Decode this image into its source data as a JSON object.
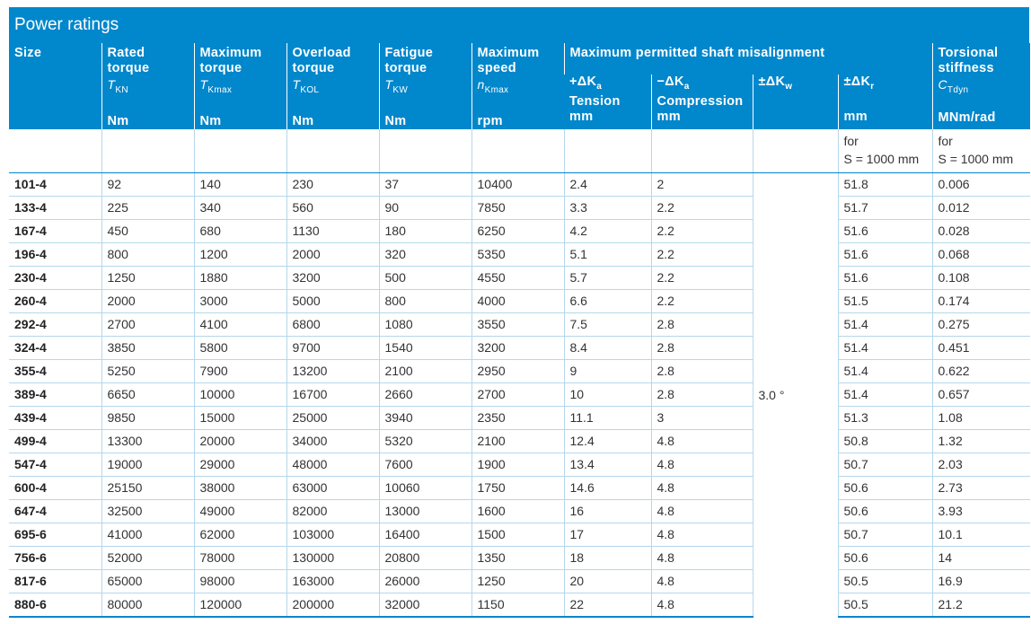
{
  "title": "Power ratings",
  "headers": {
    "size": "Size",
    "rated": {
      "label": "Rated torque",
      "sym": "T",
      "sub": "KN",
      "unit": "Nm"
    },
    "maxt": {
      "label": "Maximum torque",
      "sym": "T",
      "sub": "Kmax",
      "unit": "Nm"
    },
    "over": {
      "label": "Overload torque",
      "sym": "T",
      "sub": "KOL",
      "unit": "Nm"
    },
    "fat": {
      "label": "Fatigue torque",
      "sym": "T",
      "sub": "KW",
      "unit": "Nm"
    },
    "speed": {
      "label": "Maximum speed",
      "sym": "n",
      "sub": "Kmax",
      "unit": "rpm"
    },
    "misalign": "Maximum permitted shaft misalignment",
    "dka_t": {
      "label": "+ΔK",
      "sub": "a",
      "label2": "Tension",
      "unit": "mm"
    },
    "dka_c": {
      "label": "−ΔK",
      "sub": "a",
      "label2": "Compression",
      "unit": "mm"
    },
    "dkw": {
      "label": "±ΔK",
      "sub": "w"
    },
    "dkr": {
      "label": "±ΔK",
      "sub": "r",
      "unit": "mm"
    },
    "stiff": {
      "label": "Torsional stiffness",
      "sym": "C",
      "sub": "Tdyn",
      "unit": "MNm/rad"
    }
  },
  "notes": {
    "dkr": [
      "for",
      "S = 1000 mm"
    ],
    "stiff": [
      "for",
      "S = 1000 mm"
    ]
  },
  "dkw_value": "3.0 °",
  "rows": [
    [
      "101-4",
      "92",
      "140",
      "230",
      "37",
      "10400",
      "2.4",
      "2",
      "51.8",
      "0.006"
    ],
    [
      "133-4",
      "225",
      "340",
      "560",
      "90",
      "7850",
      "3.3",
      "2.2",
      "51.7",
      "0.012"
    ],
    [
      "167-4",
      "450",
      "680",
      "1130",
      "180",
      "6250",
      "4.2",
      "2.2",
      "51.6",
      "0.028"
    ],
    [
      "196-4",
      "800",
      "1200",
      "2000",
      "320",
      "5350",
      "5.1",
      "2.2",
      "51.6",
      "0.068"
    ],
    [
      "230-4",
      "1250",
      "1880",
      "3200",
      "500",
      "4550",
      "5.7",
      "2.2",
      "51.6",
      "0.108"
    ],
    [
      "260-4",
      "2000",
      "3000",
      "5000",
      "800",
      "4000",
      "6.6",
      "2.2",
      "51.5",
      "0.174"
    ],
    [
      "292-4",
      "2700",
      "4100",
      "6800",
      "1080",
      "3550",
      "7.5",
      "2.8",
      "51.4",
      "0.275"
    ],
    [
      "324-4",
      "3850",
      "5800",
      "9700",
      "1540",
      "3200",
      "8.4",
      "2.8",
      "51.4",
      "0.451"
    ],
    [
      "355-4",
      "5250",
      "7900",
      "13200",
      "2100",
      "2950",
      "9",
      "2.8",
      "51.4",
      "0.622"
    ],
    [
      "389-4",
      "6650",
      "10000",
      "16700",
      "2660",
      "2700",
      "10",
      "2.8",
      "51.4",
      "0.657"
    ],
    [
      "439-4",
      "9850",
      "15000",
      "25000",
      "3940",
      "2350",
      "11.1",
      "3",
      "51.3",
      "1.08"
    ],
    [
      "499-4",
      "13300",
      "20000",
      "34000",
      "5320",
      "2100",
      "12.4",
      "4.8",
      "50.8",
      "1.32"
    ],
    [
      "547-4",
      "19000",
      "29000",
      "48000",
      "7600",
      "1900",
      "13.4",
      "4.8",
      "50.7",
      "2.03"
    ],
    [
      "600-4",
      "25150",
      "38000",
      "63000",
      "10060",
      "1750",
      "14.6",
      "4.8",
      "50.6",
      "2.73"
    ],
    [
      "647-4",
      "32500",
      "49000",
      "82000",
      "13000",
      "1600",
      "16",
      "4.8",
      "50.6",
      "3.93"
    ],
    [
      "695-6",
      "41000",
      "62000",
      "103000",
      "16400",
      "1500",
      "17",
      "4.8",
      "50.7",
      "10.1"
    ],
    [
      "756-6",
      "52000",
      "78000",
      "130000",
      "20800",
      "1350",
      "18",
      "4.8",
      "50.6",
      "14"
    ],
    [
      "817-6",
      "65000",
      "98000",
      "163000",
      "26000",
      "1250",
      "20",
      "4.8",
      "50.5",
      "16.9"
    ],
    [
      "880-6",
      "80000",
      "120000",
      "200000",
      "32000",
      "1150",
      "22",
      "4.8",
      "50.5",
      "21.2"
    ]
  ]
}
